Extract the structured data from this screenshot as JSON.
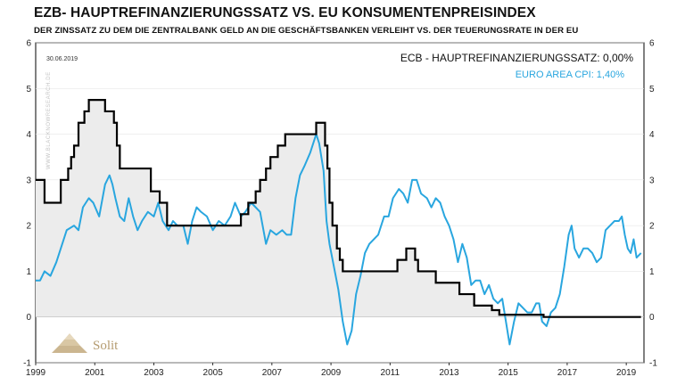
{
  "header": {
    "title": "EZB- HAUPTREFINANZIERUNGSSATZ VS. EU KONSUMENTENPREISINDEX",
    "subtitle": "DER ZINSSATZ ZU DEM DIE ZENTRALBANK GELD AN DIE GESCHÄFTSBANKEN VERLEIHT VS. DER TEUERUNGSRATE IN DER EU"
  },
  "date_label": "30.06.2019",
  "watermark": "WWW.BLACKNOWRESEARCH.DE",
  "logo": {
    "text": "Solit"
  },
  "colors": {
    "ecb": "#000000",
    "cpi": "#29a6df",
    "fill": "#ececec",
    "grid": "#e6e6e6"
  },
  "chart_data": {
    "type": "line",
    "title": "EZB- HAUPTREFINANZIERUNGSSATZ VS. EU KONSUMENTENPREISINDEX",
    "xlabel": "",
    "ylabel": "",
    "xlim": [
      1999,
      2019.6
    ],
    "ylim": [
      -1,
      6
    ],
    "x_ticks": [
      1999,
      2001,
      2003,
      2005,
      2007,
      2009,
      2011,
      2013,
      2015,
      2017,
      2019
    ],
    "y_ticks": [
      -1,
      0,
      1,
      2,
      3,
      4,
      5,
      6
    ],
    "grid": false,
    "legend_position": "top-right",
    "series": [
      {
        "name": "ECB - HAUPTREFINANZIERUNGSSATZ: 0,00%",
        "style": "step",
        "area_fill": true,
        "points": [
          [
            1999.0,
            3.0
          ],
          [
            1999.3,
            2.5
          ],
          [
            1999.85,
            3.0
          ],
          [
            2000.1,
            3.25
          ],
          [
            2000.2,
            3.5
          ],
          [
            2000.3,
            3.75
          ],
          [
            2000.45,
            4.25
          ],
          [
            2000.65,
            4.5
          ],
          [
            2000.8,
            4.75
          ],
          [
            2001.35,
            4.5
          ],
          [
            2001.65,
            4.25
          ],
          [
            2001.75,
            3.75
          ],
          [
            2001.85,
            3.25
          ],
          [
            2002.9,
            2.75
          ],
          [
            2003.2,
            2.5
          ],
          [
            2003.45,
            2.0
          ],
          [
            2005.95,
            2.25
          ],
          [
            2006.2,
            2.5
          ],
          [
            2006.45,
            2.75
          ],
          [
            2006.6,
            3.0
          ],
          [
            2006.8,
            3.25
          ],
          [
            2006.95,
            3.5
          ],
          [
            2007.2,
            3.75
          ],
          [
            2007.45,
            4.0
          ],
          [
            2008.5,
            4.25
          ],
          [
            2008.8,
            3.75
          ],
          [
            2008.88,
            3.25
          ],
          [
            2008.95,
            2.5
          ],
          [
            2009.05,
            2.0
          ],
          [
            2009.2,
            1.5
          ],
          [
            2009.3,
            1.25
          ],
          [
            2009.4,
            1.0
          ],
          [
            2011.25,
            1.25
          ],
          [
            2011.55,
            1.5
          ],
          [
            2011.85,
            1.25
          ],
          [
            2011.95,
            1.0
          ],
          [
            2012.55,
            0.75
          ],
          [
            2013.35,
            0.5
          ],
          [
            2013.85,
            0.25
          ],
          [
            2014.45,
            0.15
          ],
          [
            2014.7,
            0.05
          ],
          [
            2016.2,
            0.0
          ],
          [
            2019.5,
            0.0
          ]
        ]
      },
      {
        "name": "EURO AREA CPI: 1,40%",
        "style": "line",
        "points": [
          [
            1999.0,
            0.8
          ],
          [
            1999.15,
            0.8
          ],
          [
            1999.3,
            1.0
          ],
          [
            1999.5,
            0.9
          ],
          [
            1999.7,
            1.2
          ],
          [
            1999.9,
            1.6
          ],
          [
            2000.05,
            1.9
          ],
          [
            2000.3,
            2.0
          ],
          [
            2000.45,
            1.9
          ],
          [
            2000.6,
            2.4
          ],
          [
            2000.8,
            2.6
          ],
          [
            2000.95,
            2.5
          ],
          [
            2001.15,
            2.2
          ],
          [
            2001.35,
            2.9
          ],
          [
            2001.5,
            3.1
          ],
          [
            2001.6,
            2.9
          ],
          [
            2001.7,
            2.6
          ],
          [
            2001.85,
            2.2
          ],
          [
            2002.0,
            2.1
          ],
          [
            2002.15,
            2.6
          ],
          [
            2002.3,
            2.2
          ],
          [
            2002.45,
            1.9
          ],
          [
            2002.6,
            2.1
          ],
          [
            2002.8,
            2.3
          ],
          [
            2003.0,
            2.2
          ],
          [
            2003.15,
            2.5
          ],
          [
            2003.3,
            2.1
          ],
          [
            2003.5,
            1.9
          ],
          [
            2003.65,
            2.1
          ],
          [
            2003.8,
            2.0
          ],
          [
            2004.0,
            2.0
          ],
          [
            2004.15,
            1.6
          ],
          [
            2004.3,
            2.1
          ],
          [
            2004.45,
            2.4
          ],
          [
            2004.6,
            2.3
          ],
          [
            2004.8,
            2.2
          ],
          [
            2005.0,
            1.9
          ],
          [
            2005.2,
            2.1
          ],
          [
            2005.4,
            2.0
          ],
          [
            2005.6,
            2.2
          ],
          [
            2005.75,
            2.5
          ],
          [
            2005.95,
            2.2
          ],
          [
            2006.1,
            2.3
          ],
          [
            2006.3,
            2.5
          ],
          [
            2006.45,
            2.4
          ],
          [
            2006.6,
            2.3
          ],
          [
            2006.8,
            1.6
          ],
          [
            2006.95,
            1.9
          ],
          [
            2007.15,
            1.8
          ],
          [
            2007.35,
            1.9
          ],
          [
            2007.5,
            1.8
          ],
          [
            2007.65,
            1.8
          ],
          [
            2007.8,
            2.6
          ],
          [
            2007.95,
            3.1
          ],
          [
            2008.1,
            3.3
          ],
          [
            2008.3,
            3.6
          ],
          [
            2008.5,
            4.0
          ],
          [
            2008.6,
            3.8
          ],
          [
            2008.75,
            3.2
          ],
          [
            2008.85,
            2.1
          ],
          [
            2008.95,
            1.6
          ],
          [
            2009.1,
            1.1
          ],
          [
            2009.25,
            0.6
          ],
          [
            2009.4,
            -0.1
          ],
          [
            2009.55,
            -0.6
          ],
          [
            2009.7,
            -0.3
          ],
          [
            2009.85,
            0.5
          ],
          [
            2010.0,
            0.9
          ],
          [
            2010.15,
            1.4
          ],
          [
            2010.3,
            1.6
          ],
          [
            2010.45,
            1.7
          ],
          [
            2010.6,
            1.8
          ],
          [
            2010.8,
            2.2
          ],
          [
            2010.95,
            2.2
          ],
          [
            2011.1,
            2.6
          ],
          [
            2011.3,
            2.8
          ],
          [
            2011.45,
            2.7
          ],
          [
            2011.6,
            2.5
          ],
          [
            2011.75,
            3.0
          ],
          [
            2011.9,
            3.0
          ],
          [
            2012.05,
            2.7
          ],
          [
            2012.25,
            2.6
          ],
          [
            2012.4,
            2.4
          ],
          [
            2012.55,
            2.6
          ],
          [
            2012.7,
            2.5
          ],
          [
            2012.85,
            2.2
          ],
          [
            2013.0,
            2.0
          ],
          [
            2013.15,
            1.7
          ],
          [
            2013.3,
            1.2
          ],
          [
            2013.45,
            1.6
          ],
          [
            2013.6,
            1.3
          ],
          [
            2013.75,
            0.7
          ],
          [
            2013.9,
            0.8
          ],
          [
            2014.05,
            0.8
          ],
          [
            2014.2,
            0.5
          ],
          [
            2014.35,
            0.7
          ],
          [
            2014.5,
            0.4
          ],
          [
            2014.65,
            0.3
          ],
          [
            2014.8,
            0.4
          ],
          [
            2014.95,
            -0.2
          ],
          [
            2015.05,
            -0.6
          ],
          [
            2015.2,
            -0.1
          ],
          [
            2015.35,
            0.3
          ],
          [
            2015.5,
            0.2
          ],
          [
            2015.65,
            0.1
          ],
          [
            2015.8,
            0.1
          ],
          [
            2015.95,
            0.3
          ],
          [
            2016.05,
            0.3
          ],
          [
            2016.15,
            -0.1
          ],
          [
            2016.3,
            -0.2
          ],
          [
            2016.45,
            0.1
          ],
          [
            2016.6,
            0.2
          ],
          [
            2016.75,
            0.5
          ],
          [
            2016.9,
            1.1
          ],
          [
            2017.05,
            1.8
          ],
          [
            2017.15,
            2.0
          ],
          [
            2017.25,
            1.5
          ],
          [
            2017.4,
            1.3
          ],
          [
            2017.55,
            1.5
          ],
          [
            2017.7,
            1.5
          ],
          [
            2017.85,
            1.4
          ],
          [
            2018.0,
            1.2
          ],
          [
            2018.15,
            1.3
          ],
          [
            2018.3,
            1.9
          ],
          [
            2018.45,
            2.0
          ],
          [
            2018.6,
            2.1
          ],
          [
            2018.75,
            2.1
          ],
          [
            2018.85,
            2.2
          ],
          [
            2018.95,
            1.8
          ],
          [
            2019.05,
            1.5
          ],
          [
            2019.15,
            1.4
          ],
          [
            2019.25,
            1.7
          ],
          [
            2019.35,
            1.3
          ],
          [
            2019.5,
            1.4
          ]
        ]
      }
    ]
  }
}
